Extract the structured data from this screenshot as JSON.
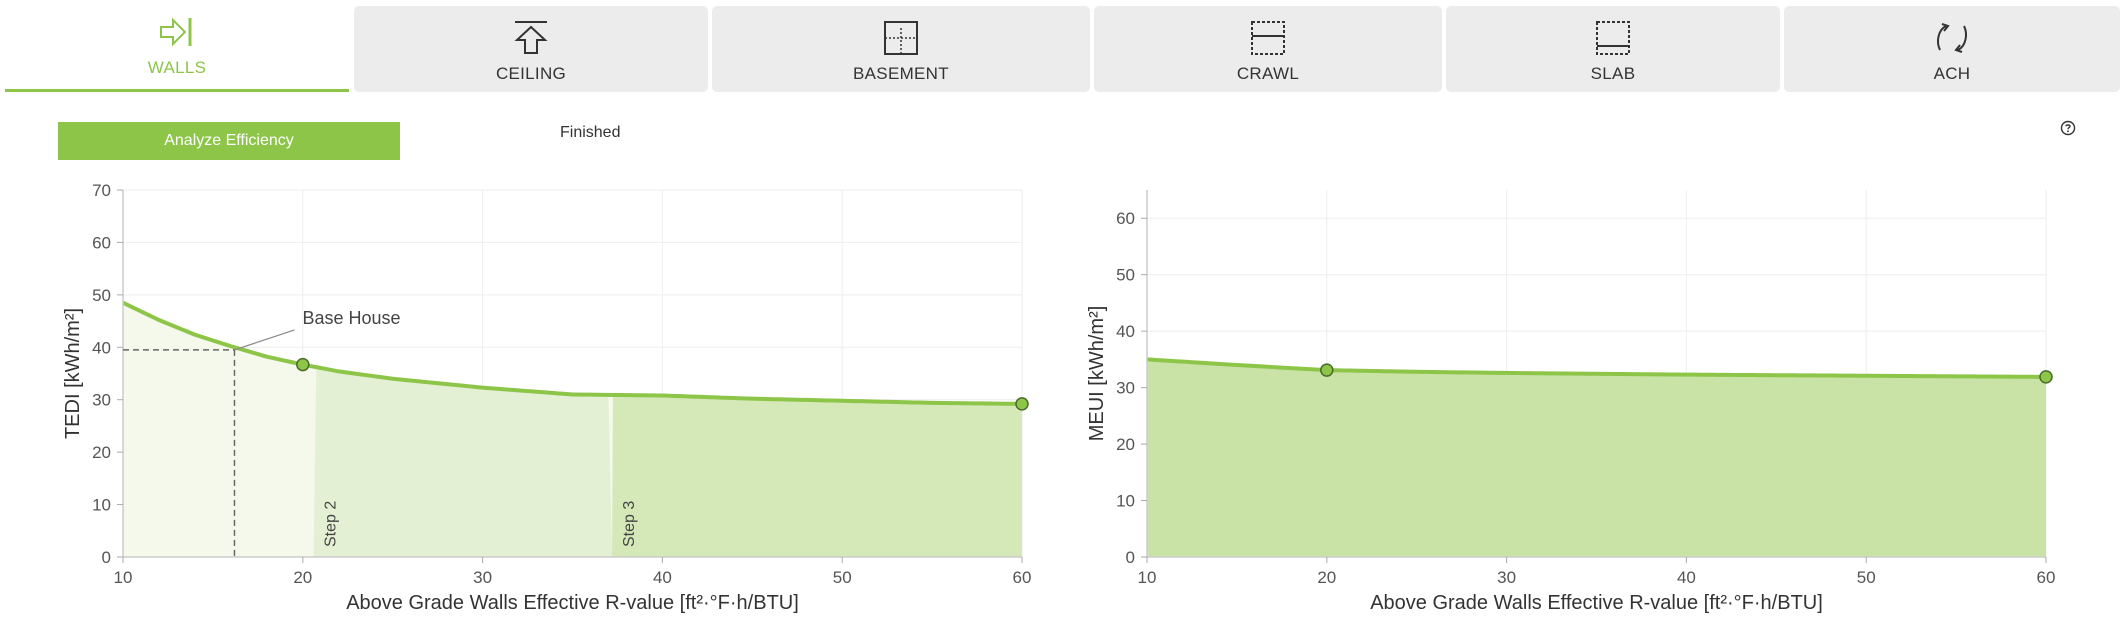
{
  "tabs": [
    {
      "label": "WALLS",
      "icon": "arrow-right-bar-icon",
      "active": true
    },
    {
      "label": "CEILING",
      "icon": "arrow-up-bar-icon",
      "active": false
    },
    {
      "label": "BASEMENT",
      "icon": "basement-square-icon",
      "active": false
    },
    {
      "label": "CRAWL",
      "icon": "crawl-square-icon",
      "active": false
    },
    {
      "label": "SLAB",
      "icon": "slab-square-icon",
      "active": false
    },
    {
      "label": "ACH",
      "icon": "refresh-arrows-icon",
      "active": false
    }
  ],
  "controls": {
    "analyze_label": "Analyze Efficiency",
    "mode_label": "Finished",
    "help_icon": "question-circle-icon"
  },
  "colors": {
    "accent": "#8dc549",
    "line": "#8dc549",
    "fill_light": "#f4f9ec",
    "fill_step2": "#e4f0d3",
    "fill_step3": "#d4e8b8",
    "fill_main": "#c9e2a5"
  },
  "chart_data": [
    {
      "type": "area",
      "xlabel": "Above Grade Walls Effective R-value [ft²·°F·h/BTU]",
      "ylabel": "TEDI [kWh/m²]",
      "xlim": [
        10,
        60
      ],
      "ylim": [
        0,
        70
      ],
      "xticks": [
        "10",
        "20",
        "30",
        "40",
        "50",
        "60"
      ],
      "yticks": [
        "0",
        "10",
        "20",
        "30",
        "40",
        "50",
        "60",
        "70"
      ],
      "grid": true,
      "series": [
        {
          "x": [
            10,
            12,
            14,
            16,
            18,
            20,
            22,
            25,
            30,
            35,
            40,
            45,
            50,
            55,
            60
          ],
          "y": [
            48.5,
            45.2,
            42.4,
            40.2,
            38.2,
            36.7,
            35.4,
            34.0,
            32.3,
            31.0,
            30.8,
            30.2,
            29.8,
            29.4,
            29.2
          ]
        }
      ],
      "markers": [
        {
          "x": 20,
          "y": 36.7
        },
        {
          "x": 60,
          "y": 29.2
        }
      ],
      "base_house": {
        "label": "Base House",
        "x": 16.2,
        "y": 39.5
      },
      "steps": [
        {
          "label": "Step 2",
          "x_start": 20.6,
          "x_end": 37.2
        },
        {
          "label": "Step 3",
          "x_start": 37.2,
          "x_end": 60
        }
      ]
    },
    {
      "type": "area",
      "xlabel": "Above Grade Walls Effective R-value [ft²·°F·h/BTU]",
      "ylabel": "MEUI [kWh/m²]",
      "xlim": [
        10,
        60
      ],
      "ylim": [
        0,
        65
      ],
      "xticks": [
        "10",
        "20",
        "30",
        "40",
        "50",
        "60"
      ],
      "yticks": [
        "0",
        "10",
        "20",
        "30",
        "40",
        "50",
        "60"
      ],
      "grid": true,
      "series": [
        {
          "x": [
            10,
            15,
            20,
            25,
            30,
            40,
            50,
            60
          ],
          "y": [
            35.0,
            34.0,
            33.1,
            32.8,
            32.6,
            32.3,
            32.1,
            31.9
          ]
        }
      ],
      "markers": [
        {
          "x": 20,
          "y": 33.1
        },
        {
          "x": 60,
          "y": 31.9
        }
      ]
    }
  ]
}
